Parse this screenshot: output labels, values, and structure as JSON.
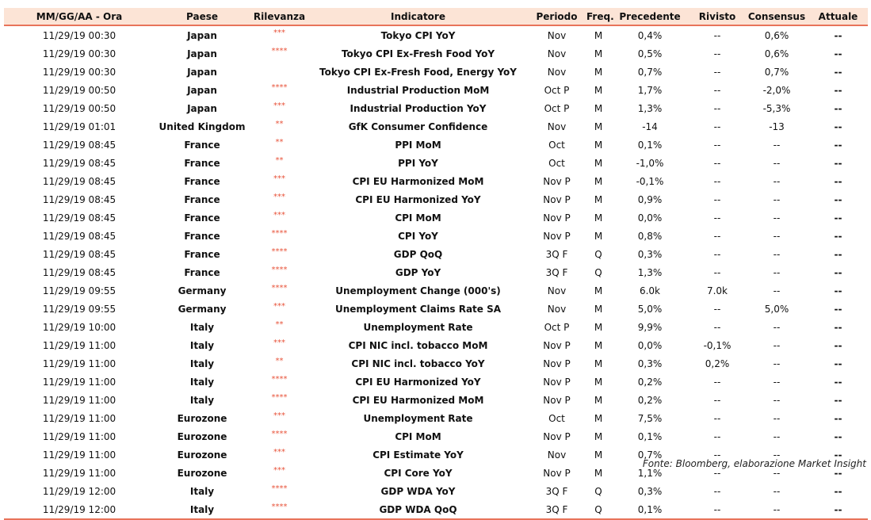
{
  "table": {
    "columns": [
      "MM/GG/AA - Ora",
      "Paese",
      "Rilevanza",
      "Indicatore",
      "Periodo",
      "Freq.",
      "Precedente",
      "Rivisto",
      "Consensus",
      "Attuale"
    ],
    "rows": [
      [
        "11/29/19 00:30",
        "Japan",
        "***",
        "Tokyo CPI YoY",
        "Nov",
        "M",
        "0,4%",
        "--",
        "0,6%",
        "--"
      ],
      [
        "11/29/19 00:30",
        "Japan",
        "****",
        "Tokyo CPI Ex-Fresh Food YoY",
        "Nov",
        "M",
        "0,5%",
        "--",
        "0,6%",
        "--"
      ],
      [
        "11/29/19 00:30",
        "Japan",
        null,
        "Tokyo CPI Ex-Fresh Food, Energy YoY",
        "Nov",
        "M",
        "0,7%",
        "--",
        "0,7%",
        "--"
      ],
      [
        "11/29/19 00:50",
        "Japan",
        "****",
        "Industrial Production MoM",
        "Oct P",
        "M",
        "1,7%",
        "--",
        "-2,0%",
        "--"
      ],
      [
        "11/29/19 00:50",
        "Japan",
        "***",
        "Industrial Production YoY",
        "Oct P",
        "M",
        "1,3%",
        "--",
        "-5,3%",
        "--"
      ],
      [
        "11/29/19 01:01",
        "United Kingdom",
        "**",
        "GfK Consumer Confidence",
        "Nov",
        "M",
        "-14",
        "--",
        "-13",
        "--"
      ],
      [
        "11/29/19 08:45",
        "France",
        "**",
        "PPI MoM",
        "Oct",
        "M",
        "0,1%",
        "--",
        "--",
        "--"
      ],
      [
        "11/29/19 08:45",
        "France",
        "**",
        "PPI YoY",
        "Oct",
        "M",
        "-1,0%",
        "--",
        "--",
        "--"
      ],
      [
        "11/29/19 08:45",
        "France",
        "***",
        "CPI EU Harmonized MoM",
        "Nov P",
        "M",
        "-0,1%",
        "--",
        "--",
        "--"
      ],
      [
        "11/29/19 08:45",
        "France",
        "***",
        "CPI EU Harmonized YoY",
        "Nov P",
        "M",
        "0,9%",
        "--",
        "--",
        "--"
      ],
      [
        "11/29/19 08:45",
        "France",
        "***",
        "CPI MoM",
        "Nov P",
        "M",
        "0,0%",
        "--",
        "--",
        "--"
      ],
      [
        "11/29/19 08:45",
        "France",
        "****",
        "CPI YoY",
        "Nov P",
        "M",
        "0,8%",
        "--",
        "--",
        "--"
      ],
      [
        "11/29/19 08:45",
        "France",
        "****",
        "GDP QoQ",
        "3Q F",
        "Q",
        "0,3%",
        "--",
        "--",
        "--"
      ],
      [
        "11/29/19 08:45",
        "France",
        "****",
        "GDP YoY",
        "3Q F",
        "Q",
        "1,3%",
        "--",
        "--",
        "--"
      ],
      [
        "11/29/19 09:55",
        "Germany",
        "****",
        "Unemployment Change (000's)",
        "Nov",
        "M",
        "6.0k",
        "7.0k",
        "--",
        "--"
      ],
      [
        "11/29/19 09:55",
        "Germany",
        "***",
        "Unemployment Claims Rate SA",
        "Nov",
        "M",
        "5,0%",
        "--",
        "5,0%",
        "--"
      ],
      [
        "11/29/19 10:00",
        "Italy",
        "**",
        "Unemployment Rate",
        "Oct P",
        "M",
        "9,9%",
        "--",
        "--",
        "--"
      ],
      [
        "11/29/19 11:00",
        "Italy",
        "***",
        "CPI NIC incl. tobacco MoM",
        "Nov P",
        "M",
        "0,0%",
        "-0,1%",
        "--",
        "--"
      ],
      [
        "11/29/19 11:00",
        "Italy",
        "**",
        "CPI NIC incl. tobacco YoY",
        "Nov P",
        "M",
        "0,3%",
        "0,2%",
        "--",
        "--"
      ],
      [
        "11/29/19 11:00",
        "Italy",
        "****",
        "CPI EU Harmonized YoY",
        "Nov P",
        "M",
        "0,2%",
        "--",
        "--",
        "--"
      ],
      [
        "11/29/19 11:00",
        "Italy",
        "****",
        "CPI EU Harmonized MoM",
        "Nov P",
        "M",
        "0,2%",
        "--",
        "--",
        "--"
      ],
      [
        "11/29/19 11:00",
        "Eurozone",
        "***",
        "Unemployment Rate",
        "Oct",
        "M",
        "7,5%",
        "--",
        "--",
        "--"
      ],
      [
        "11/29/19 11:00",
        "Eurozone",
        "****",
        "CPI MoM",
        "Nov P",
        "M",
        "0,1%",
        "--",
        "--",
        "--"
      ],
      [
        "11/29/19 11:00",
        "Eurozone",
        "***",
        "CPI Estimate YoY",
        "Nov",
        "M",
        "0,7%",
        "--",
        "--",
        "--"
      ],
      [
        "11/29/19 11:00",
        "Eurozone",
        "***",
        "CPI Core YoY",
        "Nov P",
        "M",
        "1,1%",
        "--",
        "--",
        "--"
      ],
      [
        "11/29/19 12:00",
        "Italy",
        "****",
        "GDP WDA YoY",
        "3Q F",
        "Q",
        "0,3%",
        "--",
        "--",
        "--"
      ],
      [
        "11/29/19 12:00",
        "Italy",
        "****",
        "GDP WDA QoQ",
        "3Q F",
        "Q",
        "0,1%",
        "--",
        "--",
        "--"
      ]
    ]
  },
  "footer": "Fonte: Bloomberg, elaborazione Market Insight"
}
